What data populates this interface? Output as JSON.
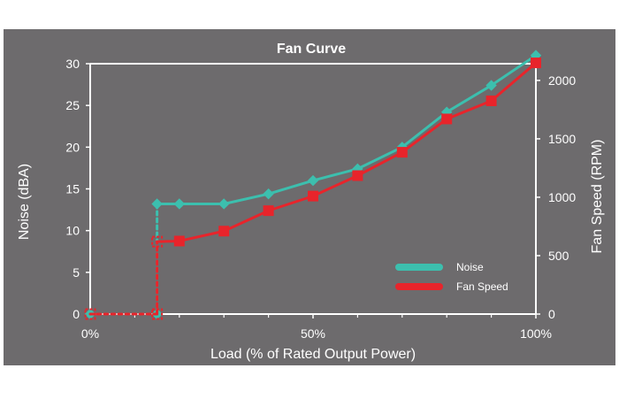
{
  "chart_data": {
    "type": "line",
    "title": "Fan Curve",
    "xlabel": "Load (% of Rated Output Power)",
    "ylabel_left": "Noise (dBA)",
    "ylabel_right": "Fan Speed (RPM)",
    "x_ticks": [
      {
        "value": 0,
        "label": "0%"
      },
      {
        "value": 50,
        "label": "50%"
      },
      {
        "value": 100,
        "label": "100%"
      }
    ],
    "y_left_ticks": [
      0,
      5,
      10,
      15,
      20,
      25,
      30
    ],
    "y_right_ticks": [
      0,
      500,
      1000,
      1500,
      2000
    ],
    "xlim": [
      0,
      100
    ],
    "ylim_left": [
      0,
      30
    ],
    "ylim_right": [
      0,
      2143
    ],
    "grid": false,
    "legend_position": "bottom-right",
    "series": [
      {
        "name": "Noise",
        "axis": "left",
        "color": "#3cbfae",
        "marker": "diamond",
        "points": [
          {
            "x": 0,
            "y": 0,
            "hollow": true
          },
          {
            "x": 15,
            "y": 0,
            "hollow": true
          },
          {
            "x": 15,
            "y": 13.2
          },
          {
            "x": 20,
            "y": 13.2
          },
          {
            "x": 30,
            "y": 13.2
          },
          {
            "x": 40,
            "y": 14.4
          },
          {
            "x": 50,
            "y": 16.0
          },
          {
            "x": 60,
            "y": 17.4
          },
          {
            "x": 70,
            "y": 20.0
          },
          {
            "x": 80,
            "y": 24.2
          },
          {
            "x": 90,
            "y": 27.4
          },
          {
            "x": 100,
            "y": 31.0
          }
        ]
      },
      {
        "name": "Fan Speed",
        "axis": "right",
        "color": "#e8242b",
        "marker": "square",
        "points": [
          {
            "x": 0,
            "y": 0,
            "hollow": true
          },
          {
            "x": 15,
            "y": 0,
            "hollow": true
          },
          {
            "x": 15,
            "y": 620,
            "hollow": true
          },
          {
            "x": 20,
            "y": 625
          },
          {
            "x": 30,
            "y": 710
          },
          {
            "x": 40,
            "y": 885
          },
          {
            "x": 50,
            "y": 1010
          },
          {
            "x": 60,
            "y": 1185
          },
          {
            "x": 70,
            "y": 1385
          },
          {
            "x": 80,
            "y": 1670
          },
          {
            "x": 90,
            "y": 1825
          },
          {
            "x": 100,
            "y": 2150
          }
        ]
      }
    ]
  },
  "colors": {
    "background": "#6d6b6d",
    "axis": "#ffffff"
  }
}
